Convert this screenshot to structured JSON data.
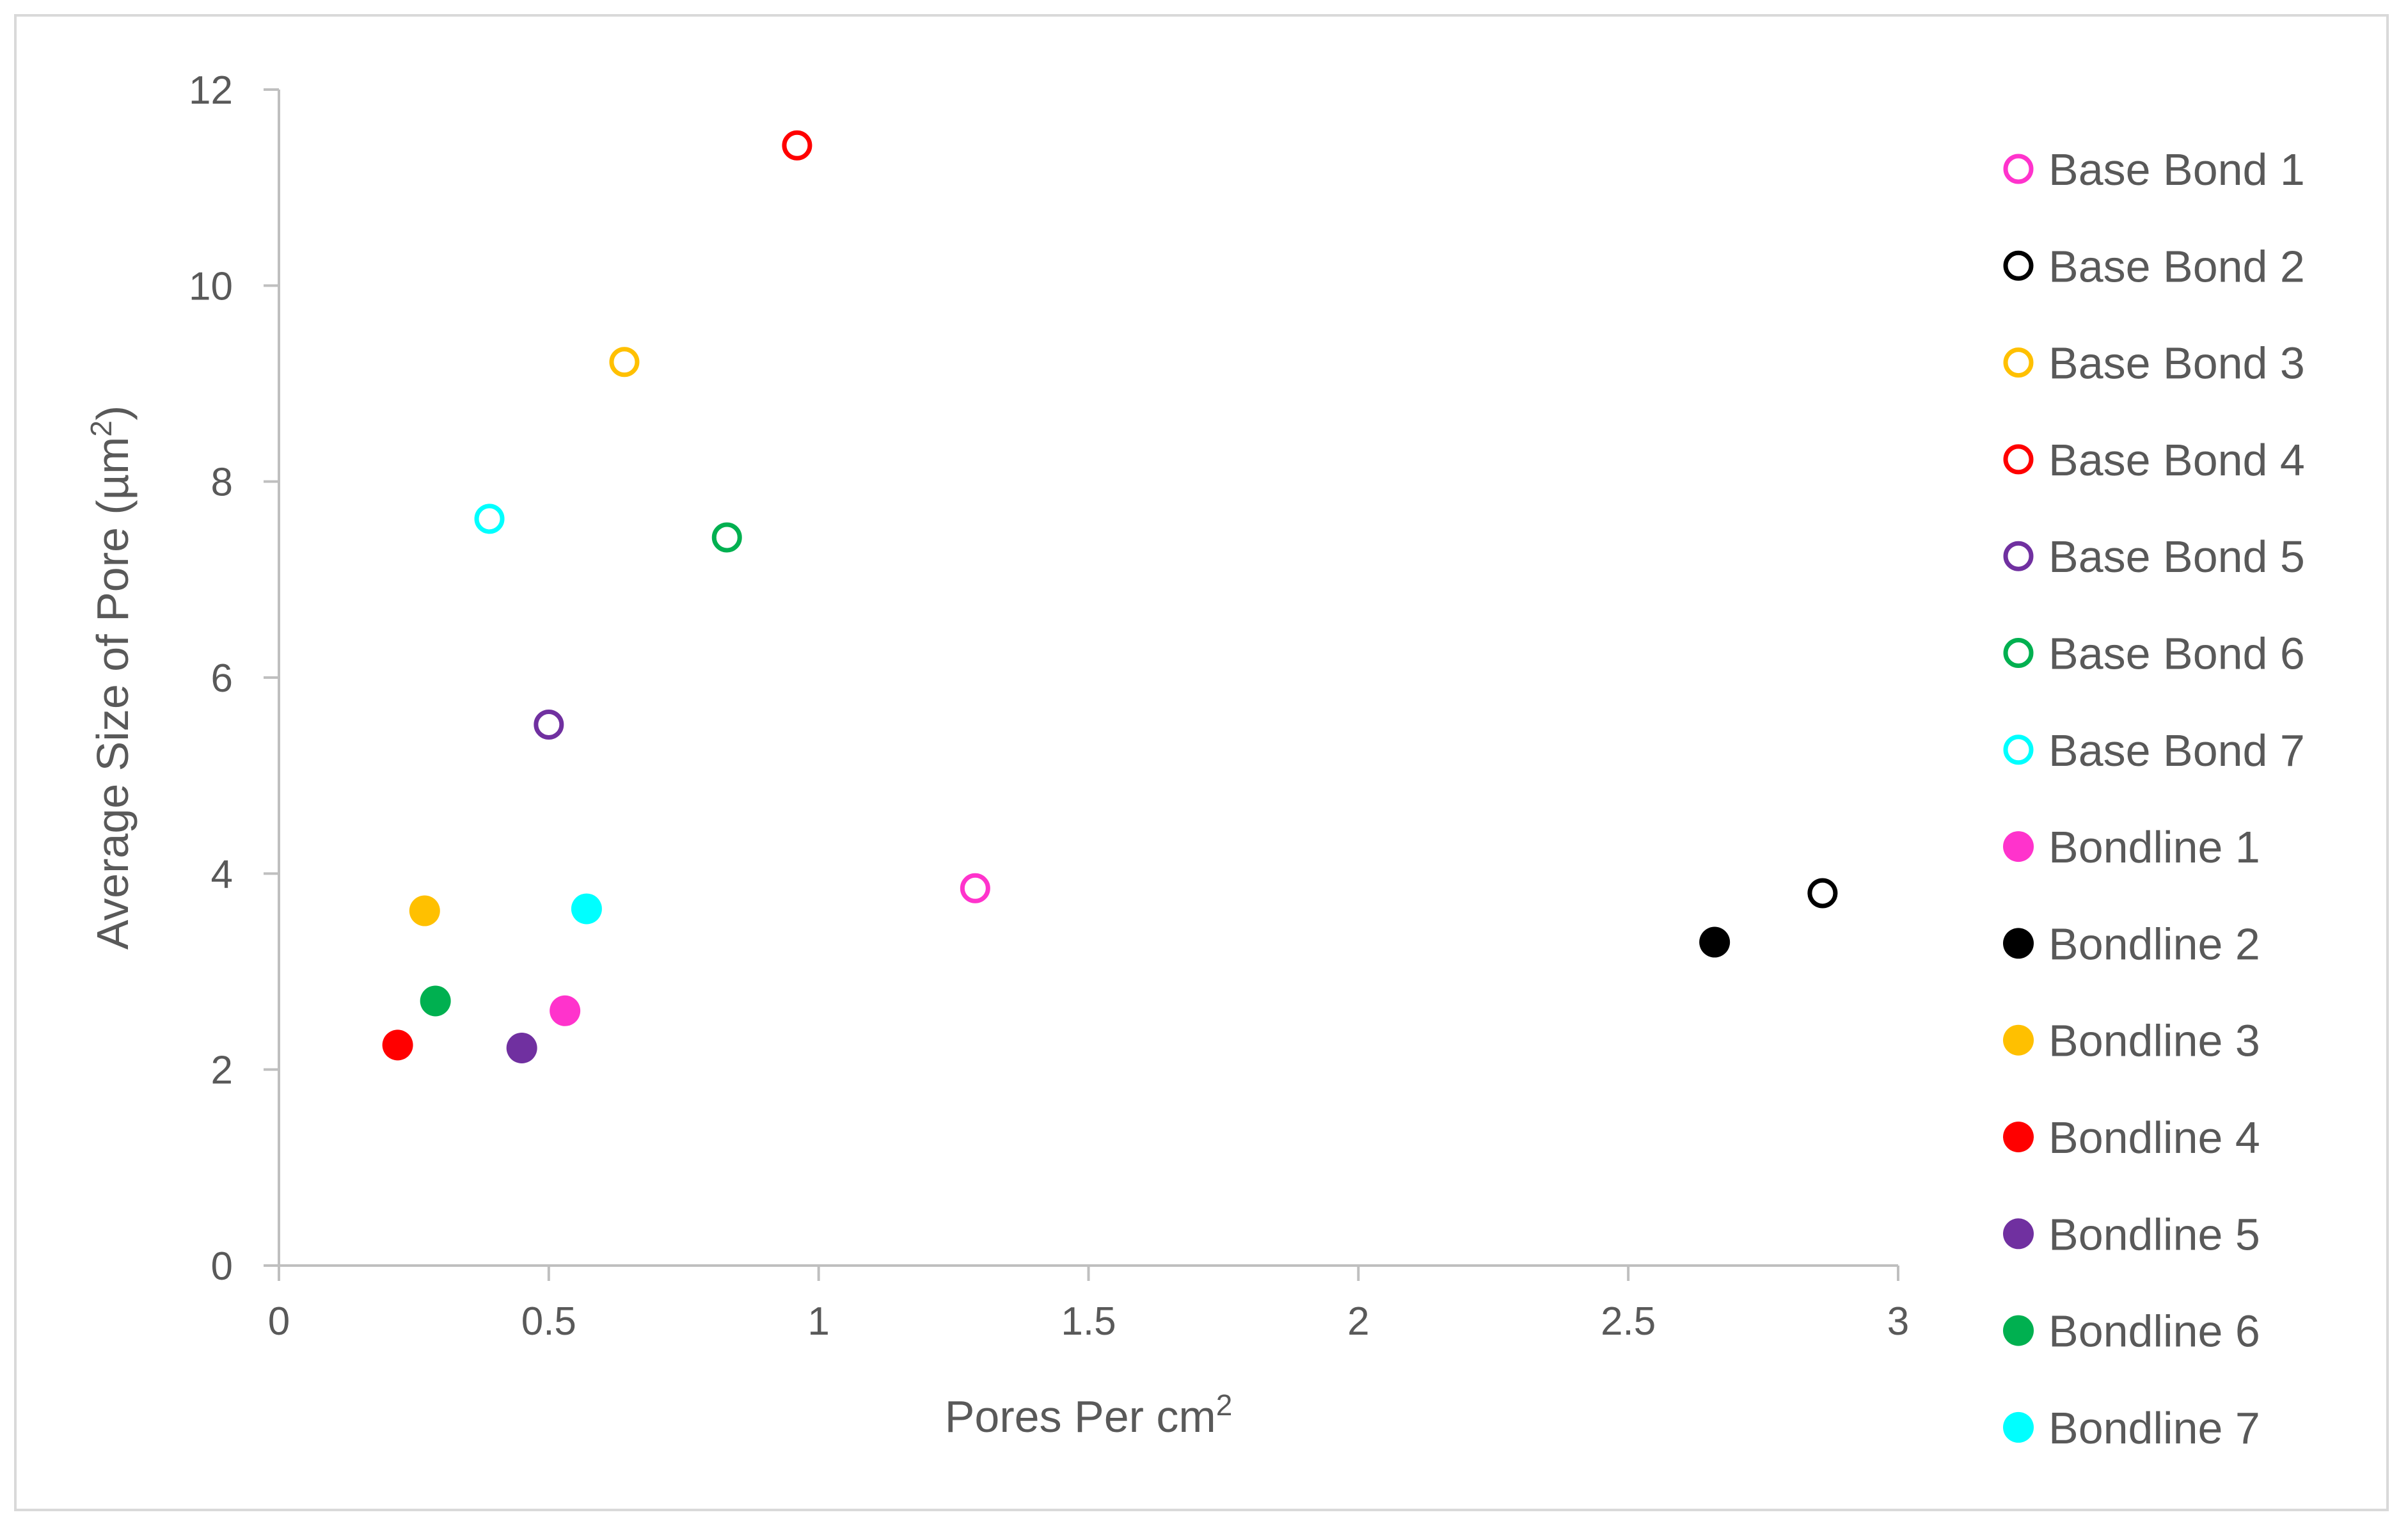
{
  "chart_data": {
    "type": "scatter",
    "xlabel": "Pores Per cm",
    "xlabel_sup": "2",
    "ylabel": "Average Size of Pore (µm",
    "ylabel_sup": "2",
    "ylabel_suffix": ")",
    "xlim": [
      0,
      3
    ],
    "ylim": [
      0,
      12
    ],
    "x_ticks": [
      0,
      0.5,
      1,
      1.5,
      2,
      2.5,
      3
    ],
    "x_tick_labels": [
      "0",
      "0.5",
      "1",
      "1.5",
      "2",
      "2.5",
      "3"
    ],
    "y_ticks": [
      0,
      2,
      4,
      6,
      8,
      10,
      12
    ],
    "y_tick_labels": [
      "0",
      "2",
      "4",
      "6",
      "8",
      "10",
      "12"
    ],
    "grid": false,
    "legend_position": "right",
    "series": [
      {
        "name": "Base Bond 1",
        "color": "#ff33cc",
        "marker": "open",
        "x": 1.29,
        "y": 3.85
      },
      {
        "name": "Base Bond 2",
        "color": "#000000",
        "marker": "open",
        "x": 2.86,
        "y": 3.8
      },
      {
        "name": "Base Bond 3",
        "color": "#ffc000",
        "marker": "open",
        "x": 0.64,
        "y": 9.22
      },
      {
        "name": "Base Bond 4",
        "color": "#ff0000",
        "marker": "open",
        "x": 0.96,
        "y": 11.43
      },
      {
        "name": "Base Bond 5",
        "color": "#7030a0",
        "marker": "open",
        "x": 0.5,
        "y": 5.52
      },
      {
        "name": "Base Bond 6",
        "color": "#00b050",
        "marker": "open",
        "x": 0.83,
        "y": 7.43
      },
      {
        "name": "Base Bond 7",
        "color": "#00ffff",
        "marker": "open",
        "x": 0.39,
        "y": 7.62
      },
      {
        "name": "Bondline 1",
        "color": "#ff33cc",
        "marker": "filled",
        "x": 0.53,
        "y": 2.6
      },
      {
        "name": "Bondline 2",
        "color": "#000000",
        "marker": "filled",
        "x": 2.66,
        "y": 3.3
      },
      {
        "name": "Bondline 3",
        "color": "#ffc000",
        "marker": "filled",
        "x": 0.27,
        "y": 3.62
      },
      {
        "name": "Bondline 4",
        "color": "#ff0000",
        "marker": "filled",
        "x": 0.22,
        "y": 2.25
      },
      {
        "name": "Bondline 5",
        "color": "#7030a0",
        "marker": "filled",
        "x": 0.45,
        "y": 2.22
      },
      {
        "name": "Bondline 6",
        "color": "#00b050",
        "marker": "filled",
        "x": 0.29,
        "y": 2.7
      },
      {
        "name": "Bondline 7",
        "color": "#00ffff",
        "marker": "filled",
        "x": 0.57,
        "y": 3.64
      }
    ]
  }
}
